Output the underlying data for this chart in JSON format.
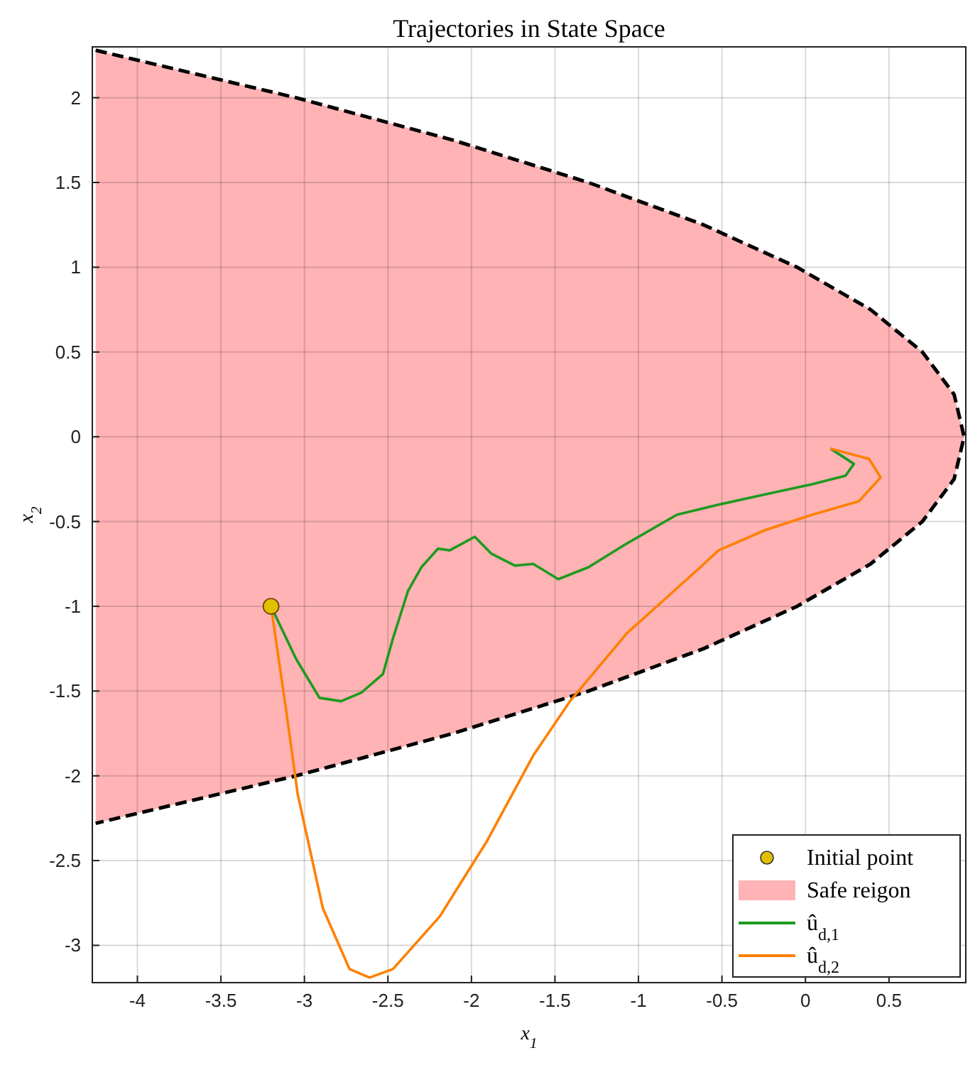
{
  "chart_data": {
    "type": "line",
    "title": "Trajectories in State Space",
    "xlabel": "x$_{1}$",
    "ylabel": "x$_{2}$",
    "xlim": [
      -4.27,
      0.96
    ],
    "ylim": [
      -3.22,
      2.3
    ],
    "xticks": [
      -4,
      -3.5,
      -3,
      -2.5,
      -2,
      -1.5,
      -1,
      -0.5,
      0,
      0.5
    ],
    "yticks": [
      -3,
      -2.5,
      -2,
      -1.5,
      -1,
      -0.5,
      0,
      0.5,
      1,
      1.5,
      2
    ],
    "grid": true,
    "legend": "bottom right",
    "series": [
      {
        "type": "scatter",
        "name": "Initial point",
        "color": "#e0c000",
        "marker": "circle",
        "x": [
          -3.2
        ],
        "values": [
          -1
        ]
      },
      {
        "type": "area",
        "name": "Safe reigon",
        "color": "#ffb3b5",
        "line_style": "dashed",
        "x": [
          -4.25,
          -3.05,
          -2.11,
          -1.3,
          -0.61,
          -0.05,
          0.39,
          0.7,
          0.89,
          0.95,
          0.89,
          0.7,
          0.39,
          -0.05,
          -0.61,
          -1.3,
          -2.11,
          -3.05,
          -4.25
        ],
        "values": [
          2.28,
          2,
          1.75,
          1.5,
          1.25,
          1,
          0.75,
          0.5,
          0.25,
          0,
          -0.25,
          -0.5,
          -0.75,
          -1,
          -1.25,
          -1.5,
          -1.75,
          -2,
          -2.28
        ]
      },
      {
        "name": "û$_{d,1}$",
        "color": "#1f9a1f",
        "x": [
          -3.2,
          -3.05,
          -2.91,
          -2.78,
          -2.66,
          -2.53,
          -2.47,
          -2.38,
          -2.3,
          -2.2,
          -2.13,
          -1.98,
          -1.88,
          -1.74,
          -1.63,
          -1.48,
          -1.3,
          -1.07,
          -0.77,
          -0.52,
          -0.24,
          0.04,
          0.24,
          0.29,
          0.15
        ],
        "values": [
          -1,
          -1.31,
          -1.54,
          -1.56,
          -1.51,
          -1.4,
          -1.19,
          -0.91,
          -0.77,
          -0.66,
          -0.67,
          -0.59,
          -0.69,
          -0.76,
          -0.75,
          -0.84,
          -0.77,
          -0.63,
          -0.46,
          -0.4,
          -0.34,
          -0.28,
          -0.23,
          -0.16,
          -0.07
        ]
      },
      {
        "name": "û$_{d,2}$",
        "color": "#ff8000",
        "x": [
          -3.2,
          -3.11,
          -3.04,
          -2.89,
          -2.73,
          -2.61,
          -2.47,
          -2.19,
          -1.91,
          -1.63,
          -1.41,
          -1.07,
          -0.63,
          -0.52,
          -0.24,
          0.04,
          0.32,
          0.45,
          0.38,
          0.15
        ],
        "values": [
          -1,
          -1.61,
          -2.11,
          -2.78,
          -3.14,
          -3.19,
          -3.14,
          -2.83,
          -2.39,
          -1.88,
          -1.56,
          -1.16,
          -0.77,
          -0.67,
          -0.55,
          -0.46,
          -0.38,
          -0.24,
          -0.13,
          -0.07
        ]
      }
    ]
  }
}
